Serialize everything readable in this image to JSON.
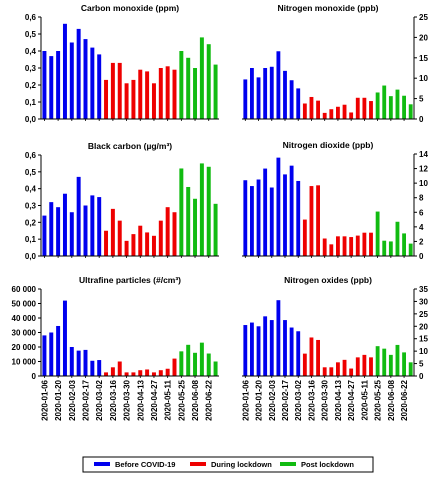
{
  "legend": [
    {
      "label": "Before COVID-19",
      "color": "#0000ee"
    },
    {
      "label": "During lockdown",
      "color": "#ee0000"
    },
    {
      "label": "Post lockdown",
      "color": "#11bb11"
    }
  ],
  "chart_data": [
    {
      "type": "bar",
      "title": "Carbon monoxide (ppm)",
      "ylim": [
        0,
        0.6
      ],
      "yticks": [
        "0,0",
        "0,1",
        "0,2",
        "0,3",
        "0,4",
        "0,5",
        "0,6"
      ],
      "values": [
        0.4,
        0.37,
        0.4,
        0.56,
        0.45,
        0.53,
        0.47,
        0.42,
        0.38,
        0.23,
        0.33,
        0.33,
        0.21,
        0.23,
        0.29,
        0.28,
        0.21,
        0.3,
        0.31,
        0.29,
        0.4,
        0.36,
        0.3,
        0.48,
        0.44,
        0.32
      ]
    },
    {
      "type": "bar",
      "title": "Nitrogen monoxide (ppb)",
      "ylim": [
        0,
        25
      ],
      "yticks": [
        "0",
        "5",
        "10",
        "15",
        "20",
        "25"
      ],
      "values": [
        9.7,
        12.5,
        10.2,
        12.5,
        12.8,
        16.6,
        11.8,
        9.5,
        7.5,
        3.8,
        5.4,
        4.5,
        1.5,
        2.4,
        3.0,
        3.5,
        1.6,
        5.2,
        5.2,
        4.4,
        6.5,
        8.2,
        5.6,
        7.2,
        5.7,
        3.6
      ]
    },
    {
      "type": "bar",
      "title": "Black carbon (µg/m³)",
      "ylim": [
        0,
        0.6
      ],
      "yticks": [
        "0,0",
        "0,1",
        "0,2",
        "0,3",
        "0,4",
        "0,5",
        "0,6"
      ],
      "values": [
        0.24,
        0.32,
        0.29,
        0.37,
        0.26,
        0.47,
        0.3,
        0.36,
        0.35,
        0.15,
        0.28,
        0.21,
        0.09,
        0.13,
        0.18,
        0.14,
        0.12,
        0.21,
        0.29,
        0.26,
        0.52,
        0.41,
        0.34,
        0.55,
        0.53,
        0.31
      ]
    },
    {
      "type": "bar",
      "title": "Nitrogen dioxide (ppb)",
      "ylim": [
        0,
        14
      ],
      "yticks": [
        "0",
        "2",
        "4",
        "6",
        "8",
        "10",
        "12",
        "14"
      ],
      "values": [
        10.4,
        9.6,
        10.5,
        12.0,
        9.4,
        13.5,
        11.2,
        12.4,
        10.3,
        5.0,
        9.6,
        9.7,
        2.4,
        1.6,
        2.7,
        2.7,
        2.6,
        2.8,
        3.2,
        3.2,
        6.1,
        2.1,
        2.0,
        4.7,
        3.1,
        1.7
      ]
    },
    {
      "type": "bar",
      "title": "Ultrafine particles (#/cm³)",
      "ylim": [
        0,
        60000
      ],
      "yticks": [
        "0",
        "10 000",
        "20 000",
        "30 000",
        "40 000",
        "50 000",
        "60 000"
      ],
      "values": [
        28000,
        30000,
        34500,
        52000,
        20000,
        17500,
        18000,
        10500,
        11000,
        2500,
        6000,
        10000,
        2500,
        2500,
        4000,
        4500,
        2500,
        4000,
        5000,
        12000,
        17000,
        21500,
        16000,
        23000,
        15500,
        10000
      ]
    },
    {
      "type": "bar",
      "title": "Nitrogen oxides (ppb)",
      "ylim": [
        0,
        35
      ],
      "yticks": [
        "0",
        "5",
        "10",
        "15",
        "20",
        "25",
        "30",
        "35"
      ],
      "values": [
        20.5,
        21.5,
        20.0,
        24.0,
        22.5,
        30.5,
        22.5,
        19.5,
        18.0,
        9.0,
        15.5,
        14.5,
        3.5,
        3.5,
        5.5,
        6.5,
        3.0,
        7.5,
        8.5,
        7.5,
        12.0,
        11.0,
        8.5,
        12.5,
        9.5,
        5.5
      ]
    }
  ],
  "x_dates": [
    "2020-01-06",
    "2020-01-13",
    "2020-01-20",
    "2020-01-27",
    "2020-02-03",
    "2020-02-10",
    "2020-02-17",
    "2020-02-24",
    "2020-03-02",
    "2020-03-09",
    "2020-03-16",
    "2020-03-23",
    "2020-03-30",
    "2020-04-06",
    "2020-04-13",
    "2020-04-20",
    "2020-04-27",
    "2020-05-04",
    "2020-05-11",
    "2020-05-18",
    "2020-05-25",
    "2020-06-01",
    "2020-06-08",
    "2020-06-15",
    "2020-06-22",
    "2020-06-29"
  ],
  "x_tick_labels": [
    "2020-01-06",
    "2020-01-20",
    "2020-02-03",
    "2020-02-17",
    "2020-03-02",
    "2020-03-16",
    "2020-03-30",
    "2020-04-13",
    "2020-04-27",
    "2020-05-11",
    "2020-05-25",
    "2020-06-08",
    "2020-06-22"
  ],
  "phase_counts": [
    9,
    11,
    6
  ]
}
